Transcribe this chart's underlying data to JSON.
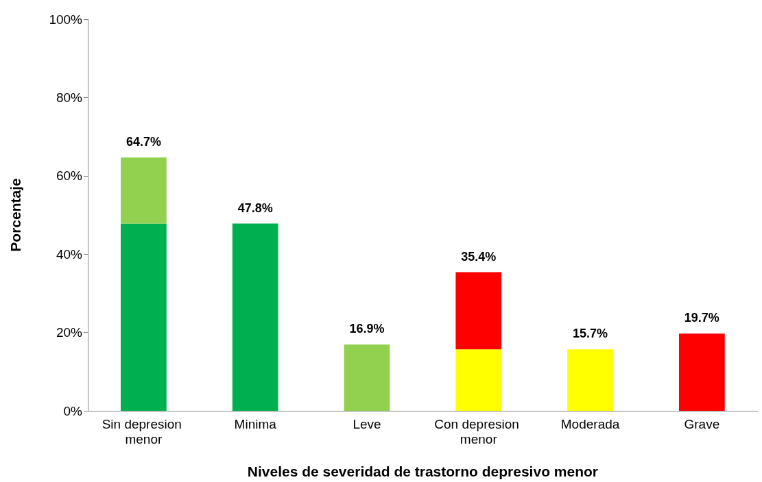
{
  "chart_data": {
    "type": "bar",
    "stacked": true,
    "xlabel": "Niveles de severidad de trastorno depresivo menor",
    "ylabel": "Porcentaje",
    "categories": [
      "Sin depresion menor",
      "Minima",
      "Leve",
      "Con depresion menor",
      "Moderada",
      "Grave"
    ],
    "series": [
      {
        "color": "#00b050",
        "values": [
          47.8,
          47.8,
          null,
          null,
          null,
          null
        ]
      },
      {
        "color": "#92d050",
        "values": [
          16.9,
          null,
          16.9,
          null,
          null,
          null
        ]
      },
      {
        "color": "#ffff00",
        "values": [
          null,
          null,
          null,
          15.7,
          15.7,
          null
        ]
      },
      {
        "color": "#ff0000",
        "values": [
          null,
          null,
          null,
          19.7,
          null,
          19.7
        ]
      }
    ],
    "totals": [
      "64.7%",
      "47.8%",
      "16.9%",
      "35.4%",
      "15.7%",
      "19.7%"
    ],
    "ylim": [
      0,
      100
    ],
    "yticks": [
      {
        "value": 0,
        "label": "0%"
      },
      {
        "value": 20,
        "label": "20%"
      },
      {
        "value": 40,
        "label": "40%"
      },
      {
        "value": 60,
        "label": "60%"
      },
      {
        "value": 80,
        "label": "80%"
      },
      {
        "value": 100,
        "label": "100%"
      }
    ],
    "grid": false
  }
}
